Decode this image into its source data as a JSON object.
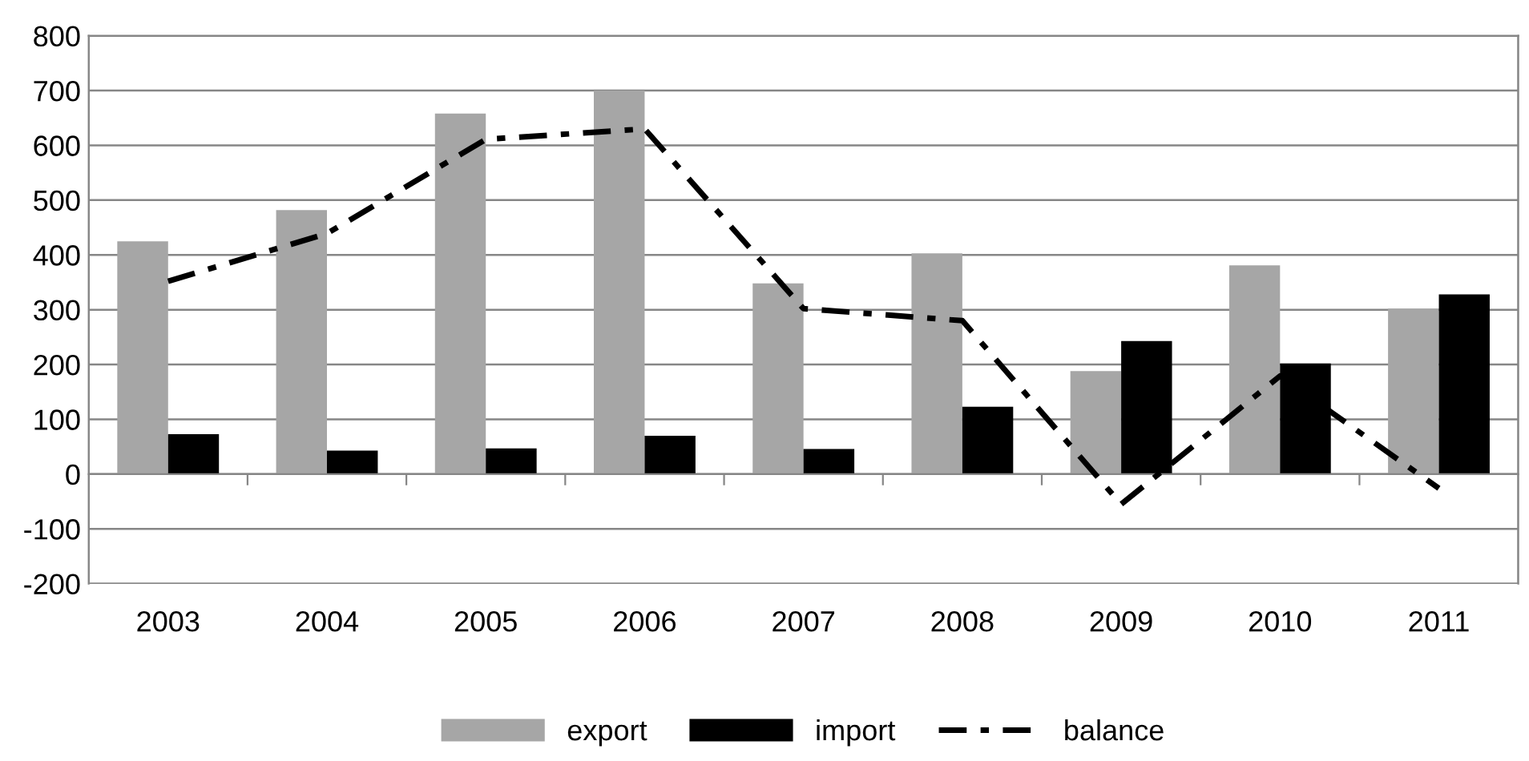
{
  "chart_data": {
    "type": "bar",
    "categories": [
      "2003",
      "2004",
      "2005",
      "2006",
      "2007",
      "2008",
      "2009",
      "2010",
      "2011"
    ],
    "series": [
      {
        "name": "export",
        "color": "#a6a6a6",
        "values": [
          425,
          482,
          658,
          700,
          348,
          403,
          188,
          381,
          302
        ]
      },
      {
        "name": "import",
        "color": "#000000",
        "values": [
          73,
          43,
          47,
          70,
          46,
          123,
          243,
          202,
          328
        ]
      },
      {
        "name": "balance",
        "type": "line",
        "color": "#000000",
        "line_style": "dashdot",
        "values": [
          352,
          439,
          611,
          630,
          302,
          280,
          -55,
          179,
          -26
        ]
      }
    ],
    "ylim": [
      -200,
      800
    ],
    "yticks": [
      -200,
      -100,
      0,
      100,
      200,
      300,
      400,
      500,
      600,
      700,
      800
    ],
    "grid": "y",
    "legend": "bottom"
  }
}
